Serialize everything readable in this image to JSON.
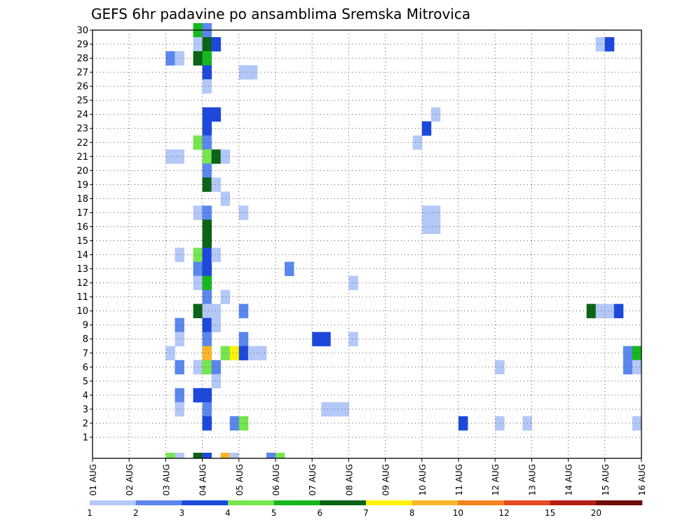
{
  "chart_data": {
    "type": "heatmap",
    "title": "GEFS 6hr padavine po ansamblima Sremska Mitrovica",
    "xlabel": "",
    "ylabel": "",
    "x_ticks": [
      "01 AUG",
      "02 AUG",
      "03 AUG",
      "04 AUG",
      "05 AUG",
      "06 AUG",
      "07 AUG",
      "08 AUG",
      "09 AUG",
      "10 AUG",
      "11 AUG",
      "12 AUG",
      "13 AUG",
      "14 AUG",
      "15 AUG",
      "16 AUG"
    ],
    "y_ticks": [
      "1",
      "2",
      "3",
      "4",
      "5",
      "6",
      "7",
      "8",
      "9",
      "10",
      "11",
      "12",
      "13",
      "14",
      "15",
      "16",
      "17",
      "18",
      "19",
      "20",
      "21",
      "22",
      "23",
      "24",
      "25",
      "26",
      "27",
      "28",
      "29",
      "30"
    ],
    "x_range_steps": [
      0,
      60
    ],
    "y_range_members": [
      0,
      30
    ],
    "grid": true,
    "colorbar": {
      "labels": [
        "1",
        "2",
        "3",
        "4",
        "5",
        "6",
        "7",
        "8",
        "10",
        "12",
        "15",
        "20"
      ],
      "colors": [
        "#b4c8f8",
        "#5a87ee",
        "#1c48dc",
        "#76e64e",
        "#16b81e",
        "#0a6414",
        "#fff20a",
        "#fbb42c",
        "#f6821e",
        "#e64a1e",
        "#b41e14",
        "#6e0a08"
      ]
    },
    "cells": [
      {
        "member": 30,
        "step": 11,
        "level": 5
      },
      {
        "member": 30,
        "step": 12,
        "level": 2
      },
      {
        "member": 29,
        "step": 11,
        "level": 1
      },
      {
        "member": 29,
        "step": 12,
        "level": 6
      },
      {
        "member": 29,
        "step": 13,
        "level": 3
      },
      {
        "member": 29,
        "step": 55,
        "level": 1
      },
      {
        "member": 29,
        "step": 56,
        "level": 3
      },
      {
        "member": 28,
        "step": 8,
        "level": 2
      },
      {
        "member": 28,
        "step": 9,
        "level": 1
      },
      {
        "member": 28,
        "step": 11,
        "level": 6
      },
      {
        "member": 28,
        "step": 12,
        "level": 5
      },
      {
        "member": 27,
        "step": 12,
        "level": 3
      },
      {
        "member": 27,
        "step": 16,
        "level": 1
      },
      {
        "member": 27,
        "step": 17,
        "level": 1
      },
      {
        "member": 26,
        "step": 12,
        "level": 1
      },
      {
        "member": 24,
        "step": 12,
        "level": 3
      },
      {
        "member": 24,
        "step": 13,
        "level": 3
      },
      {
        "member": 24,
        "step": 37,
        "level": 1
      },
      {
        "member": 23,
        "step": 12,
        "level": 3
      },
      {
        "member": 23,
        "step": 36,
        "level": 3
      },
      {
        "member": 22,
        "step": 11,
        "level": 4
      },
      {
        "member": 22,
        "step": 12,
        "level": 2
      },
      {
        "member": 22,
        "step": 35,
        "level": 1
      },
      {
        "member": 21,
        "step": 8,
        "level": 1
      },
      {
        "member": 21,
        "step": 9,
        "level": 1
      },
      {
        "member": 21,
        "step": 12,
        "level": 4
      },
      {
        "member": 21,
        "step": 13,
        "level": 6
      },
      {
        "member": 21,
        "step": 14,
        "level": 1
      },
      {
        "member": 20,
        "step": 12,
        "level": 2
      },
      {
        "member": 19,
        "step": 12,
        "level": 6
      },
      {
        "member": 19,
        "step": 13,
        "level": 1
      },
      {
        "member": 18,
        "step": 14,
        "level": 1
      },
      {
        "member": 17,
        "step": 11,
        "level": 1
      },
      {
        "member": 17,
        "step": 12,
        "level": 2
      },
      {
        "member": 17,
        "step": 16,
        "level": 1
      },
      {
        "member": 17,
        "step": 36,
        "level": 1
      },
      {
        "member": 17,
        "step": 37,
        "level": 1
      },
      {
        "member": 16,
        "step": 12,
        "level": 6
      },
      {
        "member": 16,
        "step": 36,
        "level": 1
      },
      {
        "member": 16,
        "step": 37,
        "level": 1
      },
      {
        "member": 15,
        "step": 12,
        "level": 6
      },
      {
        "member": 14,
        "step": 9,
        "level": 1
      },
      {
        "member": 14,
        "step": 11,
        "level": 4
      },
      {
        "member": 14,
        "step": 12,
        "level": 3
      },
      {
        "member": 14,
        "step": 13,
        "level": 1
      },
      {
        "member": 13,
        "step": 11,
        "level": 2
      },
      {
        "member": 13,
        "step": 12,
        "level": 3
      },
      {
        "member": 13,
        "step": 21,
        "level": 2
      },
      {
        "member": 12,
        "step": 11,
        "level": 1
      },
      {
        "member": 12,
        "step": 12,
        "level": 5
      },
      {
        "member": 12,
        "step": 28,
        "level": 1
      },
      {
        "member": 11,
        "step": 12,
        "level": 2
      },
      {
        "member": 11,
        "step": 14,
        "level": 1
      },
      {
        "member": 10,
        "step": 11,
        "level": 6
      },
      {
        "member": 10,
        "step": 12,
        "level": 1
      },
      {
        "member": 10,
        "step": 13,
        "level": 1
      },
      {
        "member": 10,
        "step": 16,
        "level": 2
      },
      {
        "member": 10,
        "step": 54,
        "level": 6
      },
      {
        "member": 10,
        "step": 55,
        "level": 1
      },
      {
        "member": 10,
        "step": 56,
        "level": 1
      },
      {
        "member": 10,
        "step": 57,
        "level": 3
      },
      {
        "member": 9,
        "step": 9,
        "level": 2
      },
      {
        "member": 9,
        "step": 12,
        "level": 3
      },
      {
        "member": 9,
        "step": 13,
        "level": 1
      },
      {
        "member": 8,
        "step": 9,
        "level": 1
      },
      {
        "member": 8,
        "step": 12,
        "level": 2
      },
      {
        "member": 8,
        "step": 16,
        "level": 2
      },
      {
        "member": 8,
        "step": 24,
        "level": 3
      },
      {
        "member": 8,
        "step": 25,
        "level": 3
      },
      {
        "member": 8,
        "step": 28,
        "level": 1
      },
      {
        "member": 7,
        "step": 8,
        "level": 1
      },
      {
        "member": 7,
        "step": 12,
        "level": 8
      },
      {
        "member": 7,
        "step": 14,
        "level": 4
      },
      {
        "member": 7,
        "step": 15,
        "level": 7
      },
      {
        "member": 7,
        "step": 16,
        "level": 3
      },
      {
        "member": 7,
        "step": 17,
        "level": 1
      },
      {
        "member": 7,
        "step": 18,
        "level": 1
      },
      {
        "member": 7,
        "step": 58,
        "level": 2
      },
      {
        "member": 7,
        "step": 59,
        "level": 5
      },
      {
        "member": 6,
        "step": 9,
        "level": 2
      },
      {
        "member": 6,
        "step": 11,
        "level": 1
      },
      {
        "member": 6,
        "step": 12,
        "level": 4
      },
      {
        "member": 6,
        "step": 13,
        "level": 2
      },
      {
        "member": 6,
        "step": 44,
        "level": 1
      },
      {
        "member": 6,
        "step": 58,
        "level": 2
      },
      {
        "member": 6,
        "step": 59,
        "level": 1
      },
      {
        "member": 5,
        "step": 13,
        "level": 1
      },
      {
        "member": 4,
        "step": 9,
        "level": 2
      },
      {
        "member": 4,
        "step": 11,
        "level": 3
      },
      {
        "member": 4,
        "step": 12,
        "level": 3
      },
      {
        "member": 3,
        "step": 9,
        "level": 1
      },
      {
        "member": 3,
        "step": 12,
        "level": 2
      },
      {
        "member": 3,
        "step": 25,
        "level": 1
      },
      {
        "member": 3,
        "step": 26,
        "level": 1
      },
      {
        "member": 3,
        "step": 27,
        "level": 1
      },
      {
        "member": 2,
        "step": 12,
        "level": 3
      },
      {
        "member": 2,
        "step": 15,
        "level": 2
      },
      {
        "member": 2,
        "step": 16,
        "level": 4
      },
      {
        "member": 2,
        "step": 40,
        "level": 3
      },
      {
        "member": 2,
        "step": 44,
        "level": 1
      },
      {
        "member": 2,
        "step": 47,
        "level": 1
      },
      {
        "member": 2,
        "step": 59,
        "level": 1
      },
      {
        "member": 0,
        "step": 8,
        "level": 4
      },
      {
        "member": 0,
        "step": 9,
        "level": 1
      },
      {
        "member": 0,
        "step": 11,
        "level": 6
      },
      {
        "member": 0,
        "step": 12,
        "level": 3
      },
      {
        "member": 0,
        "step": 14,
        "level": 8
      },
      {
        "member": 0,
        "step": 15,
        "level": 1
      },
      {
        "member": 0,
        "step": 19,
        "level": 2
      },
      {
        "member": 0,
        "step": 20,
        "level": 4
      }
    ]
  }
}
